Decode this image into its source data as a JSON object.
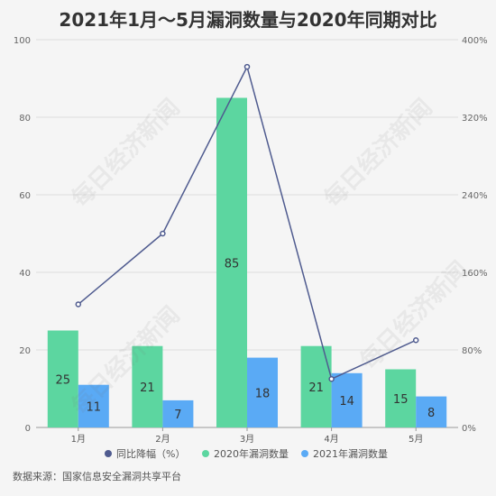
{
  "title": "2021年1月～5月漏洞数量与2020年同期对比",
  "source": "数据来源：国家信息安全漏洞共享平台",
  "watermark": "每日经济新闻",
  "colors": {
    "bar2020": "#5cd6a0",
    "bar2021": "#5aaaf5",
    "line": "#4f5b8f",
    "grid": "#dddddd",
    "axis": "#999999"
  },
  "chart_data": {
    "type": "bar",
    "categories": [
      "1月",
      "2月",
      "3月",
      "4月",
      "5月"
    ],
    "series": [
      {
        "name": "2020年漏洞数量",
        "type": "bar",
        "axis": "left",
        "values": [
          25,
          21,
          85,
          21,
          15
        ]
      },
      {
        "name": "2021年漏洞数量",
        "type": "bar",
        "axis": "left",
        "values": [
          11,
          7,
          18,
          14,
          8
        ]
      },
      {
        "name": "同比降幅（%）",
        "type": "line",
        "axis": "right",
        "values": [
          127,
          200,
          372,
          50,
          90
        ]
      }
    ],
    "left_axis": {
      "ylim": [
        0,
        100
      ],
      "ticks": [
        "0",
        "20",
        "40",
        "60",
        "80",
        "100"
      ]
    },
    "right_axis": {
      "ylim": [
        0,
        400
      ],
      "ticks": [
        "0%",
        "80%",
        "160%",
        "240%",
        "320%",
        "400%"
      ]
    },
    "legend_placement": "bottom",
    "grid": true
  }
}
